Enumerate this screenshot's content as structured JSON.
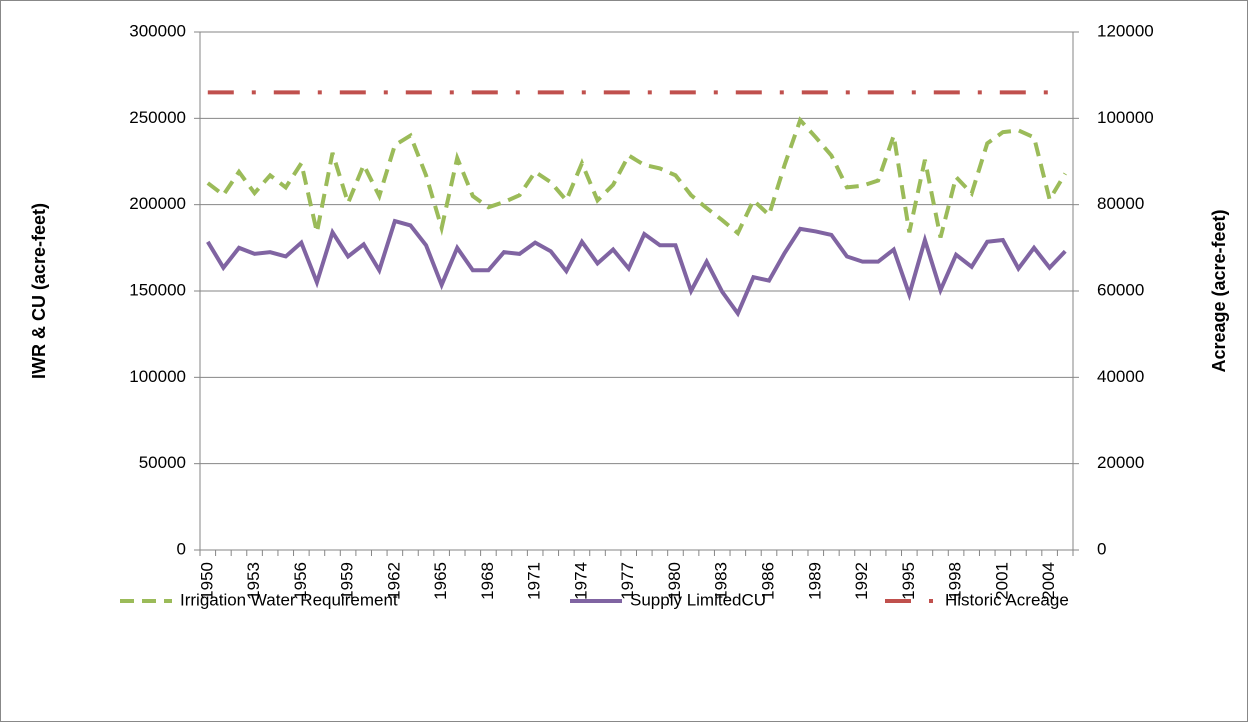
{
  "chart_data": {
    "type": "line",
    "y_label": "IWR & CU (acre-feet)",
    "y2_label": "Acreage (acre-feet)",
    "categories": [
      "1950",
      null,
      null,
      "1953",
      null,
      null,
      "1956",
      null,
      null,
      "1959",
      null,
      null,
      "1962",
      null,
      null,
      "1965",
      null,
      null,
      "1968",
      null,
      null,
      "1971",
      null,
      null,
      "1974",
      null,
      null,
      "1977",
      null,
      null,
      "1980",
      null,
      null,
      "1983",
      null,
      null,
      "1986",
      null,
      null,
      "1989",
      null,
      null,
      "1992",
      null,
      null,
      "1995",
      null,
      null,
      "1998",
      null,
      null,
      "2001",
      null,
      null,
      "2004",
      null
    ],
    "series": [
      {
        "name": "Irrigation Water Requirement",
        "color": "#9bbb59",
        "line_style": "dashed",
        "axis": "y",
        "values": [
          212500,
          205600,
          219000,
          206700,
          217000,
          210000,
          224000,
          184000,
          230000,
          201000,
          223000,
          205000,
          234500,
          240000,
          217000,
          186500,
          227000,
          205000,
          198500,
          201500,
          205500,
          219000,
          213000,
          202500,
          224000,
          202500,
          211500,
          228500,
          223000,
          221000,
          217000,
          205500,
          198000,
          191000,
          183500,
          202500,
          194000,
          223000,
          249000,
          239000,
          228500,
          210000,
          211000,
          214000,
          240000,
          184000,
          226000,
          181000,
          216000,
          206500,
          235500,
          242000,
          243000,
          239000,
          203000,
          218000
        ]
      },
      {
        "name": "Supply LimitedCU",
        "color": "#8064a2",
        "line_style": "solid",
        "axis": "y",
        "values": [
          178500,
          163500,
          175000,
          171500,
          172500,
          170000,
          178000,
          155000,
          184000,
          170000,
          177000,
          162000,
          190500,
          188000,
          176500,
          153500,
          175000,
          162000,
          162000,
          172500,
          171500,
          178000,
          173000,
          161500,
          178500,
          166000,
          174000,
          163000,
          183000,
          176500,
          176500,
          150000,
          167000,
          149500,
          137000,
          158000,
          156000,
          172000,
          186000,
          184500,
          182500,
          170000,
          167000,
          167000,
          174000,
          148000,
          179500,
          150500,
          171000,
          164000,
          178500,
          179500,
          163000,
          175000,
          163500,
          173000
        ]
      },
      {
        "name": "Historic Acreage",
        "color": "#c0504d",
        "line_style": "dash-dot",
        "axis": "y2",
        "values": [
          106000,
          106000,
          106000,
          106000,
          106000,
          106000,
          106000,
          106000,
          106000,
          106000,
          106000,
          106000,
          106000,
          106000,
          106000,
          106000,
          106000,
          106000,
          106000,
          106000,
          106000,
          106000,
          106000,
          106000,
          106000,
          106000,
          106000,
          106000,
          106000,
          106000,
          106000,
          106000,
          106000,
          106000,
          106000,
          106000,
          106000,
          106000,
          106000,
          106000,
          106000,
          106000,
          106000,
          106000,
          106000,
          106000,
          106000,
          106000,
          106000,
          106000,
          106000,
          106000,
          106000,
          106000,
          106000,
          106000
        ]
      }
    ],
    "ylim": [
      0,
      300000
    ],
    "yticks": [
      0,
      50000,
      100000,
      150000,
      200000,
      250000,
      300000
    ],
    "y2lim": [
      0,
      120000
    ],
    "y2ticks": [
      0,
      20000,
      40000,
      60000,
      80000,
      100000,
      120000
    ],
    "grid": true,
    "legend": "bottom"
  }
}
